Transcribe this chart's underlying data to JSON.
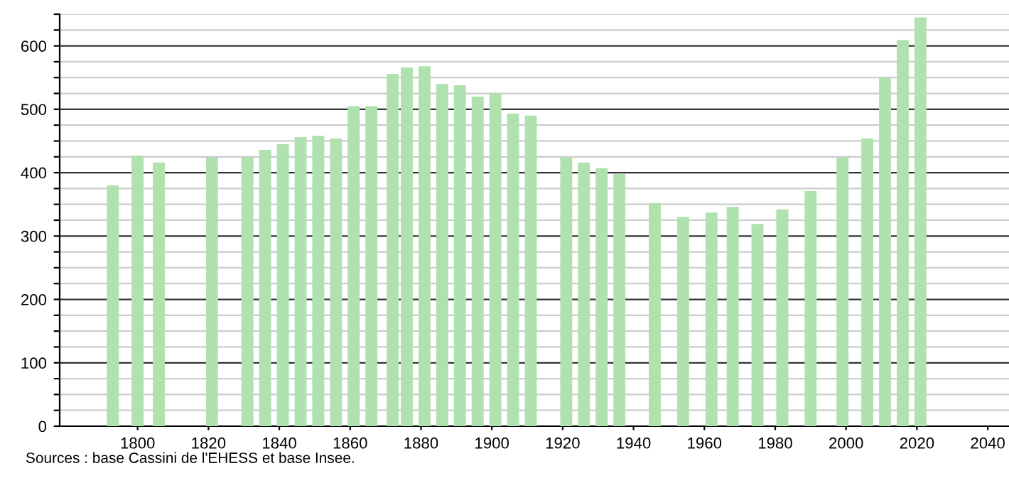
{
  "chart_data": {
    "type": "bar",
    "x": [
      1793,
      1800,
      1806,
      1821,
      1831,
      1836,
      1841,
      1846,
      1851,
      1856,
      1861,
      1866,
      1872,
      1876,
      1881,
      1886,
      1891,
      1896,
      1901,
      1906,
      1911,
      1921,
      1926,
      1931,
      1936,
      1946,
      1954,
      1962,
      1968,
      1975,
      1982,
      1990,
      1999,
      2006,
      2011,
      2016,
      2021
    ],
    "values": [
      380,
      427,
      416,
      424,
      424,
      436,
      445,
      456,
      458,
      454,
      505,
      505,
      556,
      566,
      568,
      540,
      538,
      520,
      525,
      493,
      490,
      424,
      416,
      407,
      398,
      352,
      330,
      337,
      346,
      319,
      342,
      371,
      424,
      454,
      549,
      609,
      645
    ],
    "color": "#b0e2b0",
    "xlim": [
      1778,
      2046
    ],
    "xticks": [
      1800,
      1820,
      1840,
      1860,
      1880,
      1900,
      1920,
      1940,
      1960,
      1980,
      2000,
      2020,
      2040
    ],
    "ylim": [
      0,
      650
    ],
    "yticks": [
      0,
      {
        "value": 25,
        "label": null
      },
      {
        "value": 50,
        "label": null
      },
      {
        "value": 75,
        "label": null
      },
      100,
      {
        "value": 125,
        "label": null
      },
      {
        "value": 150,
        "label": null
      },
      {
        "value": 175,
        "label": null
      },
      200,
      {
        "value": 225,
        "label": null
      },
      {
        "value": 250,
        "label": null
      },
      {
        "value": 275,
        "label": null
      },
      300,
      {
        "value": 325,
        "label": null
      },
      {
        "value": 350,
        "label": null
      },
      {
        "value": 375,
        "label": null
      },
      400,
      {
        "value": 425,
        "label": null
      },
      {
        "value": 450,
        "label": null
      },
      {
        "value": 475,
        "label": null
      },
      500,
      {
        "value": 525,
        "label": null
      },
      {
        "value": 550,
        "label": null
      },
      {
        "value": 575,
        "label": null
      },
      600,
      {
        "value": 625,
        "label": null
      },
      {
        "value": 650,
        "label": null
      }
    ],
    "grid": "y",
    "annotations": [
      "Sources : base Cassini de l'EHESS et base Insee."
    ]
  }
}
